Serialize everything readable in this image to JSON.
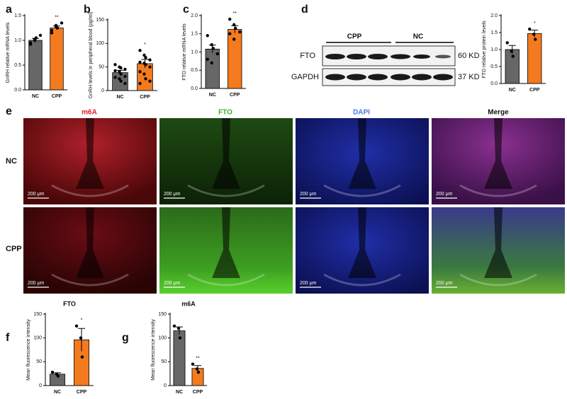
{
  "chart_data": [
    {
      "type": "bar",
      "panel": "a",
      "ylabel": "GnRH relative mRNA levels",
      "categories": [
        "NC",
        "CPP"
      ],
      "values": [
        1.0,
        1.25
      ],
      "errors": [
        0.04,
        0.04
      ],
      "colors": [
        "#676767",
        "#f47a20"
      ],
      "points": [
        [
          0.95,
          1.0,
          1.05,
          1.1,
          0.92,
          1.02
        ],
        [
          1.2,
          1.3,
          1.25,
          1.35,
          1.15,
          1.28
        ]
      ],
      "significance": "**",
      "ylim": [
        0,
        1.5
      ],
      "yticks": [
        {
          "value": 0,
          "label": "0.0"
        },
        0.5,
        {
          "value": 1,
          "label": "1.0"
        },
        1.5
      ]
    },
    {
      "type": "bar",
      "panel": "b",
      "ylabel": "GnRH levels in peripheral blood (pg/ml)",
      "categories": [
        "NC",
        "CPP"
      ],
      "values": [
        38,
        57
      ],
      "errors": [
        5,
        9
      ],
      "colors": [
        "#676767",
        "#f47a20"
      ],
      "points": [
        [
          55,
          50,
          48,
          45,
          42,
          40,
          35,
          30,
          28,
          25,
          20,
          15
        ],
        [
          85,
          75,
          70,
          65,
          60,
          58,
          55,
          50,
          40,
          35,
          25,
          20,
          15
        ]
      ],
      "significance": "*",
      "ylim": [
        0,
        150
      ],
      "yticks": [
        0,
        50,
        100,
        150
      ]
    },
    {
      "type": "bar",
      "panel": "c",
      "ylabel": "FTO relative mRNA levels",
      "categories": [
        "NC",
        "CPP"
      ],
      "values": [
        1.08,
        1.62
      ],
      "errors": [
        0.11,
        0.1
      ],
      "colors": [
        "#676767",
        "#f47a20"
      ],
      "points": [
        [
          1.45,
          1.2,
          1.1,
          0.95,
          0.8,
          0.7
        ],
        [
          1.9,
          1.75,
          1.65,
          1.55,
          1.5,
          1.35
        ]
      ],
      "significance": "**",
      "ylim": [
        0,
        2
      ],
      "yticks": [
        {
          "value": 0,
          "label": "0.0"
        },
        0.5,
        {
          "value": 1,
          "label": "1.0"
        },
        1.5,
        {
          "value": 2,
          "label": "2.0"
        }
      ]
    },
    {
      "type": "bar",
      "ylabel": "FTO relative protein levels",
      "categories": [
        "NC",
        "CPP"
      ],
      "values": [
        1.0,
        1.47
      ],
      "errors": [
        0.12,
        0.1
      ],
      "colors": [
        "#676767",
        "#f47a20"
      ],
      "points": [
        [
          1.2,
          0.95,
          0.8
        ],
        [
          1.6,
          1.45,
          1.3
        ]
      ],
      "significance": "*",
      "ylim": [
        0,
        2
      ],
      "yticks": [
        {
          "value": 0,
          "label": "0.0"
        },
        0.5,
        {
          "value": 1,
          "label": "1.0"
        },
        1.5,
        {
          "value": 2,
          "label": "2.0"
        }
      ]
    },
    {
      "type": "bar",
      "panel": "f",
      "title": "FTO",
      "ylabel": "Mean fluorescence intensity",
      "categories": [
        "NC",
        "CPP"
      ],
      "values": [
        24,
        96
      ],
      "errors": [
        3,
        24
      ],
      "colors": [
        "#676767",
        "#f47a20"
      ],
      "points": [
        [
          28,
          24,
          20
        ],
        [
          125,
          100,
          60
        ]
      ],
      "significance": "*",
      "ylim": [
        0,
        150
      ],
      "yticks": [
        0,
        50,
        100,
        150
      ]
    },
    {
      "type": "bar",
      "panel": "g",
      "title": "m6A",
      "ylabel": "Mean fluorescence intensity",
      "categories": [
        "NC",
        "CPP"
      ],
      "values": [
        115,
        36
      ],
      "errors": [
        8,
        6
      ],
      "colors": [
        "#676767",
        "#f47a20"
      ],
      "points": [
        [
          125,
          120,
          100
        ],
        [
          45,
          35,
          28
        ]
      ],
      "significance": "**",
      "ylim": [
        0,
        150
      ],
      "yticks": [
        0,
        50,
        100,
        150
      ]
    }
  ],
  "blot": {
    "panel": "d",
    "groups": [
      "CPP",
      "NC"
    ],
    "proteins": [
      "FTO",
      "GAPDH"
    ],
    "sizes": [
      "60 KD",
      "37 KD"
    ]
  },
  "imaging": {
    "panel": "e",
    "columns": [
      "m6A",
      "FTO",
      "DAPI",
      "Merge"
    ],
    "rows": [
      "NC",
      "CPP"
    ],
    "scale_bar": "200 μm"
  }
}
